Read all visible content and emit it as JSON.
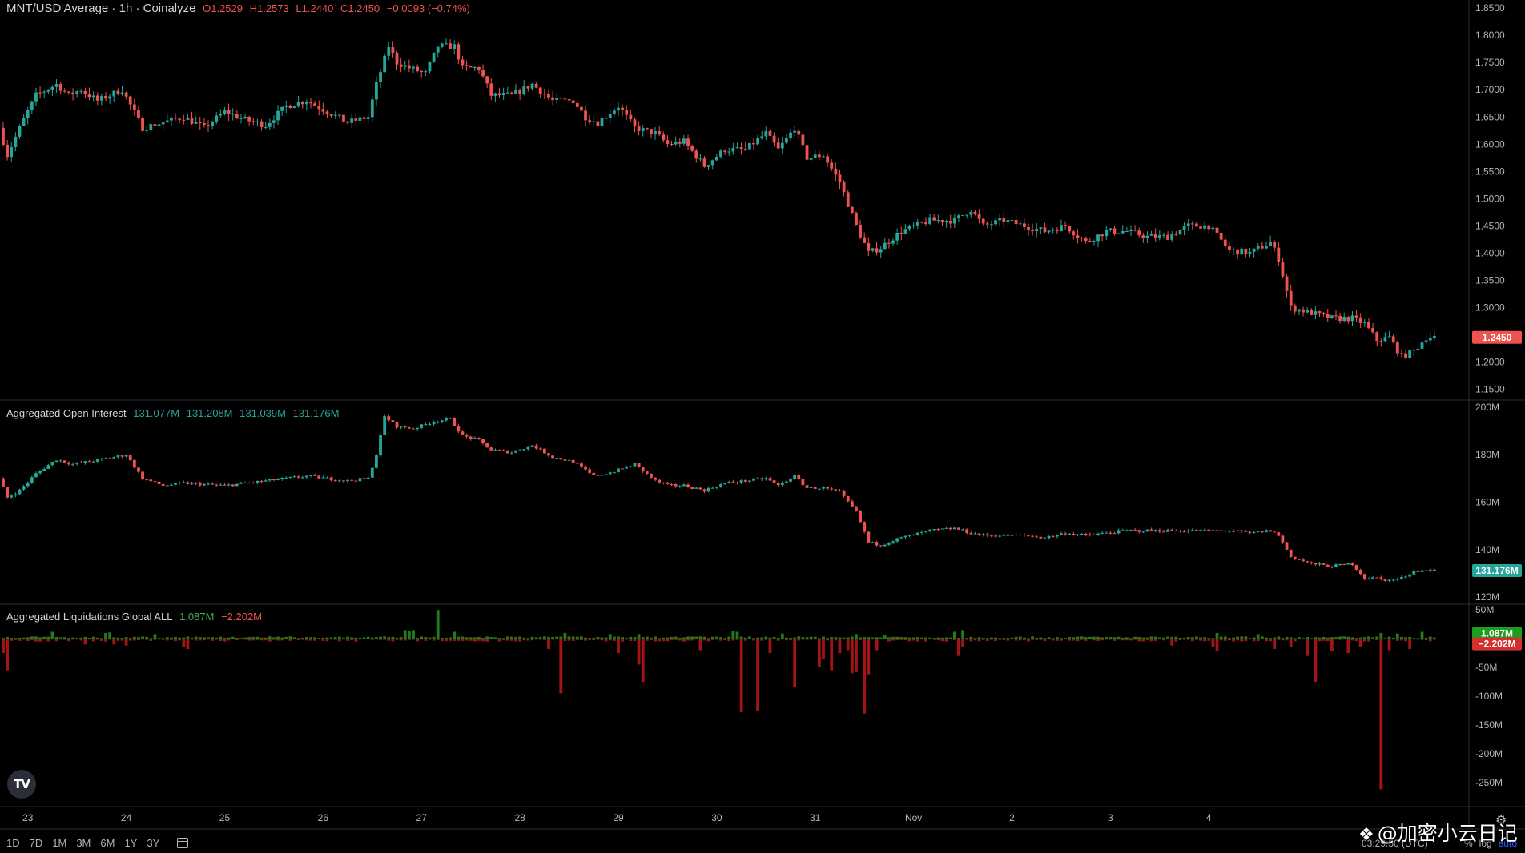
{
  "header": {
    "symbol": "MNT/USD Average · 1h · Coinalyze",
    "o": "O1.2529",
    "h": "H1.2573",
    "l": "L1.2440",
    "c": "C1.2450",
    "change": "−0.0093 (−0.74%)"
  },
  "oi_header": {
    "title": "Aggregated Open Interest",
    "values": [
      "131.077M",
      "131.208M",
      "131.039M",
      "131.176M"
    ]
  },
  "liq_header": {
    "title": "Aggregated Liquidations Global ALL",
    "long": "1.087M",
    "short": "−2.202M"
  },
  "timeframes": [
    "1D",
    "7D",
    "1M",
    "3M",
    "6M",
    "1Y",
    "3Y"
  ],
  "clock": "03:29:50 (UTC)",
  "scale_options": {
    "percent": "%",
    "log": "log",
    "auto": "auto"
  },
  "logo_text": "TV",
  "watermark": "@加密小云日记",
  "colors": {
    "up": "#26a69a",
    "down": "#ef5350",
    "liq_long": "#1b7d1b",
    "liq_short": "#a31414",
    "bg": "#000000",
    "grid_line": "#2a2e39"
  },
  "chart_data": [
    {
      "type": "candlestick",
      "name": "price",
      "x_labels": [
        "23",
        "24",
        "25",
        "26",
        "27",
        "28",
        "29",
        "30",
        "31",
        "Nov",
        "2",
        "3",
        "4"
      ],
      "y_ticks": [
        "1.8500",
        "1.8000",
        "1.7500",
        "1.7000",
        "1.6500",
        "1.6000",
        "1.5500",
        "1.5000",
        "1.4500",
        "1.4000",
        "1.3500",
        "1.3000",
        "1.2500",
        "1.2000",
        "1.1500"
      ],
      "ylim": [
        1.13,
        1.865
      ],
      "last_value": "1.2450",
      "anchors": [
        [
          0,
          1.63
        ],
        [
          2,
          1.58
        ],
        [
          5,
          1.63
        ],
        [
          9,
          1.69
        ],
        [
          14,
          1.71
        ],
        [
          17,
          1.69
        ],
        [
          20,
          1.7
        ],
        [
          24,
          1.68
        ],
        [
          27,
          1.69
        ],
        [
          30,
          1.7
        ],
        [
          35,
          1.63
        ],
        [
          40,
          1.64
        ],
        [
          45,
          1.65
        ],
        [
          50,
          1.63
        ],
        [
          55,
          1.66
        ],
        [
          60,
          1.645
        ],
        [
          65,
          1.635
        ],
        [
          70,
          1.67
        ],
        [
          75,
          1.68
        ],
        [
          80,
          1.66
        ],
        [
          85,
          1.64
        ],
        [
          90,
          1.65
        ],
        [
          92,
          1.71
        ],
        [
          95,
          1.78
        ],
        [
          97,
          1.75
        ],
        [
          100,
          1.74
        ],
        [
          104,
          1.73
        ],
        [
          107,
          1.78
        ],
        [
          111,
          1.78
        ],
        [
          113,
          1.74
        ],
        [
          117,
          1.74
        ],
        [
          120,
          1.69
        ],
        [
          125,
          1.69
        ],
        [
          130,
          1.71
        ],
        [
          135,
          1.68
        ],
        [
          140,
          1.68
        ],
        [
          143,
          1.65
        ],
        [
          146,
          1.64
        ],
        [
          151,
          1.67
        ],
        [
          155,
          1.63
        ],
        [
          160,
          1.62
        ],
        [
          163,
          1.6
        ],
        [
          167,
          1.605
        ],
        [
          172,
          1.56
        ],
        [
          177,
          1.59
        ],
        [
          182,
          1.59
        ],
        [
          187,
          1.62
        ],
        [
          190,
          1.59
        ],
        [
          194,
          1.63
        ],
        [
          197,
          1.575
        ],
        [
          201,
          1.58
        ],
        [
          205,
          1.53
        ],
        [
          209,
          1.45
        ],
        [
          212,
          1.4
        ],
        [
          215,
          1.41
        ],
        [
          220,
          1.44
        ],
        [
          227,
          1.46
        ],
        [
          233,
          1.46
        ],
        [
          237,
          1.48
        ],
        [
          240,
          1.45
        ],
        [
          245,
          1.46
        ],
        [
          250,
          1.45
        ],
        [
          255,
          1.44
        ],
        [
          260,
          1.45
        ],
        [
          265,
          1.42
        ],
        [
          270,
          1.44
        ],
        [
          275,
          1.44
        ],
        [
          280,
          1.43
        ],
        [
          285,
          1.43
        ],
        [
          290,
          1.45
        ],
        [
          295,
          1.45
        ],
        [
          300,
          1.405
        ],
        [
          305,
          1.4
        ],
        [
          310,
          1.42
        ],
        [
          312,
          1.39
        ],
        [
          315,
          1.3
        ],
        [
          320,
          1.29
        ],
        [
          325,
          1.28
        ],
        [
          330,
          1.28
        ],
        [
          333,
          1.27
        ],
        [
          336,
          1.24
        ],
        [
          339,
          1.245
        ],
        [
          342,
          1.21
        ],
        [
          345,
          1.22
        ],
        [
          348,
          1.245
        ]
      ]
    },
    {
      "type": "candlestick",
      "name": "Aggregated Open Interest",
      "y_ticks": [
        "200M",
        "180M",
        "160M",
        "140M",
        "120M"
      ],
      "ylim": [
        117,
        203
      ],
      "last_value": "131.176M",
      "anchors": [
        [
          0,
          170
        ],
        [
          2,
          162
        ],
        [
          5,
          165
        ],
        [
          9,
          172
        ],
        [
          14,
          178
        ],
        [
          18,
          176
        ],
        [
          25,
          178
        ],
        [
          31,
          180
        ],
        [
          35,
          170
        ],
        [
          40,
          167
        ],
        [
          45,
          168
        ],
        [
          55,
          167
        ],
        [
          60,
          168
        ],
        [
          65,
          169
        ],
        [
          70,
          170
        ],
        [
          75,
          171
        ],
        [
          80,
          170
        ],
        [
          85,
          169
        ],
        [
          90,
          170
        ],
        [
          92,
          180
        ],
        [
          94,
          196
        ],
        [
          97,
          192
        ],
        [
          101,
          191
        ],
        [
          106,
          194
        ],
        [
          110,
          195
        ],
        [
          113,
          188
        ],
        [
          117,
          186
        ],
        [
          120,
          182
        ],
        [
          125,
          181
        ],
        [
          130,
          184
        ],
        [
          135,
          179
        ],
        [
          140,
          177
        ],
        [
          145,
          171
        ],
        [
          150,
          173
        ],
        [
          155,
          176
        ],
        [
          160,
          169
        ],
        [
          163,
          167
        ],
        [
          167,
          167
        ],
        [
          172,
          165
        ],
        [
          177,
          168
        ],
        [
          182,
          169
        ],
        [
          187,
          170
        ],
        [
          190,
          167
        ],
        [
          194,
          171
        ],
        [
          197,
          166
        ],
        [
          201,
          166
        ],
        [
          205,
          164
        ],
        [
          209,
          156
        ],
        [
          212,
          143
        ],
        [
          215,
          142
        ],
        [
          220,
          145
        ],
        [
          227,
          148
        ],
        [
          233,
          149
        ],
        [
          237,
          147
        ],
        [
          240,
          146
        ],
        [
          245,
          146
        ],
        [
          250,
          146
        ],
        [
          255,
          145
        ],
        [
          260,
          147
        ],
        [
          265,
          146
        ],
        [
          270,
          147
        ],
        [
          275,
          148
        ],
        [
          280,
          148
        ],
        [
          285,
          148
        ],
        [
          290,
          148
        ],
        [
          295,
          148
        ],
        [
          300,
          148
        ],
        [
          305,
          147
        ],
        [
          310,
          148
        ],
        [
          312,
          146
        ],
        [
          315,
          137
        ],
        [
          320,
          134
        ],
        [
          325,
          133
        ],
        [
          330,
          134
        ],
        [
          333,
          128
        ],
        [
          336,
          128
        ],
        [
          339,
          127
        ],
        [
          342,
          128
        ],
        [
          345,
          131
        ],
        [
          348,
          131.2
        ]
      ]
    },
    {
      "type": "bar",
      "name": "Aggregated Liquidations Global ALL",
      "y_ticks": [
        "50M",
        "-50M",
        "-100M",
        "-150M",
        "-200M",
        "-250M"
      ],
      "ylim": [
        -292,
        60
      ],
      "long_value": "1.087M",
      "short_value": "−2.202M",
      "long_spikes": [
        [
          12,
          12
        ],
        [
          25,
          10
        ],
        [
          26,
          11
        ],
        [
          37,
          8
        ],
        [
          98,
          15
        ],
        [
          99,
          13
        ],
        [
          100,
          15
        ],
        [
          106,
          50
        ],
        [
          110,
          12
        ],
        [
          137,
          10
        ],
        [
          148,
          8
        ],
        [
          155,
          8
        ],
        [
          178,
          13
        ],
        [
          179,
          12
        ],
        [
          190,
          9
        ],
        [
          208,
          8
        ],
        [
          215,
          7
        ],
        [
          232,
          12
        ],
        [
          234,
          15
        ],
        [
          296,
          10
        ],
        [
          306,
          8
        ],
        [
          336,
          10
        ],
        [
          340,
          9
        ],
        [
          346,
          12
        ]
      ],
      "short_spikes": [
        [
          0,
          -25
        ],
        [
          1,
          -55
        ],
        [
          20,
          -10
        ],
        [
          27,
          -10
        ],
        [
          30,
          -12
        ],
        [
          44,
          -15
        ],
        [
          45,
          -18
        ],
        [
          133,
          -18
        ],
        [
          136,
          -95
        ],
        [
          150,
          -25
        ],
        [
          155,
          -45
        ],
        [
          156,
          -75
        ],
        [
          170,
          -20
        ],
        [
          180,
          -128
        ],
        [
          184,
          -125
        ],
        [
          187,
          -25
        ],
        [
          193,
          -85
        ],
        [
          199,
          -50
        ],
        [
          200,
          -35
        ],
        [
          202,
          -55
        ],
        [
          204,
          -25
        ],
        [
          206,
          -20
        ],
        [
          207,
          -60
        ],
        [
          208,
          -58
        ],
        [
          210,
          -130
        ],
        [
          211,
          -62
        ],
        [
          213,
          -20
        ],
        [
          233,
          -30
        ],
        [
          234,
          -15
        ],
        [
          285,
          -12
        ],
        [
          295,
          -15
        ],
        [
          296,
          -22
        ],
        [
          310,
          -18
        ],
        [
          314,
          -15
        ],
        [
          318,
          -30
        ],
        [
          320,
          -75
        ],
        [
          324,
          -22
        ],
        [
          328,
          -25
        ],
        [
          331,
          -15
        ],
        [
          336,
          -262
        ],
        [
          338,
          -20
        ],
        [
          343,
          -18
        ]
      ]
    }
  ]
}
